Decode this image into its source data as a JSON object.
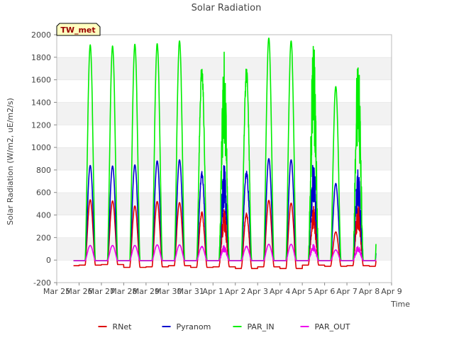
{
  "chart_data": {
    "type": "line",
    "title": "Solar Radiation",
    "xlabel": "Time",
    "ylabel": "Solar Radiation (W/m2, uE/m2/s)",
    "station_label": "TW_met",
    "ylim": [
      -200,
      2000
    ],
    "yticks": [
      -200,
      0,
      200,
      400,
      600,
      800,
      1000,
      1200,
      1400,
      1600,
      1800,
      2000
    ],
    "xlim": [
      0,
      15
    ],
    "x_tick_labels": [
      "Mar 25",
      "Mar 26",
      "Mar 27",
      "Mar 28",
      "Mar 29",
      "Mar 30",
      "Mar 31",
      "Apr 1",
      "Apr 2",
      "Apr 3",
      "Apr 4",
      "Apr 5",
      "Apr 6",
      "Apr 7",
      "Apr 8",
      "Apr 9"
    ],
    "x_unit": "days since Mar 25",
    "grid": "horizontal bands",
    "legend_position": "bottom",
    "series": [
      {
        "name": "RNet",
        "color": "#dd0000",
        "night": [
          -50,
          -45,
          -40,
          -65,
          -60,
          -50,
          -65,
          -60,
          -75,
          -60,
          -75,
          -45,
          -55,
          -50,
          -55
        ],
        "peaks": [
          535,
          525,
          480,
          520,
          510,
          430,
          460,
          420,
          530,
          505,
          480,
          250,
          500,
          470
        ]
      },
      {
        "name": "Pyranom",
        "color": "#0000cc",
        "night": [
          -5,
          -5,
          -5,
          -5,
          -5,
          -5,
          -5,
          -5,
          -5,
          -5,
          -5,
          -5,
          -5,
          -5,
          -5
        ],
        "peaks": [
          840,
          835,
          845,
          880,
          890,
          790,
          850,
          800,
          900,
          890,
          900,
          680,
          820,
          720
        ]
      },
      {
        "name": "PAR_IN",
        "color": "#00ee00",
        "night": [
          -5,
          -5,
          -5,
          -5,
          -5,
          -5,
          -5,
          -5,
          -5,
          -5,
          -5,
          -5,
          -5,
          -5,
          -5
        ],
        "peaks": [
          1910,
          1900,
          1915,
          1920,
          1945,
          1735,
          1880,
          1730,
          1970,
          1945,
          1990,
          1540,
          1860,
          1600
        ]
      },
      {
        "name": "PAR_OUT",
        "color": "#ee00ee",
        "night": [
          -5,
          -5,
          -5,
          -5,
          -5,
          -5,
          -5,
          -5,
          -5,
          -5,
          -5,
          -5,
          -5,
          -5,
          -5
        ],
        "peaks": [
          130,
          130,
          130,
          135,
          135,
          125,
          130,
          125,
          140,
          140,
          145,
          90,
          130,
          100
        ]
      }
    ]
  }
}
